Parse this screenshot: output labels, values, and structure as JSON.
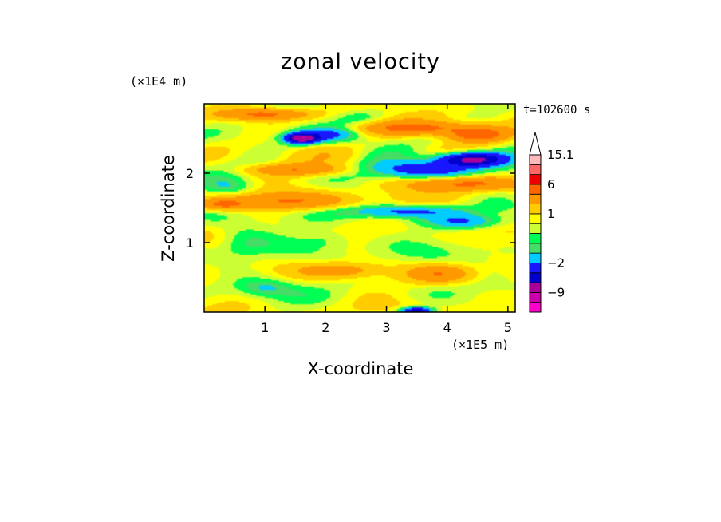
{
  "chart_data": {
    "type": "heatmap",
    "title": "zonal velocity",
    "xlabel": "X-coordinate",
    "ylabel": "Z-coordinate",
    "x_scale_label": "(×1E5 m)",
    "y_scale_label": "(×1E4 m)",
    "time_label": "t=102600 s",
    "xlim": [
      0,
      5.12
    ],
    "ylim": [
      0,
      3.0
    ],
    "x_ticks": [
      1,
      2,
      3,
      4,
      5
    ],
    "x_tick_labels": [
      "1",
      "2",
      "3",
      "4",
      "5"
    ],
    "y_ticks": [
      1,
      2
    ],
    "y_tick_labels": [
      "1",
      "2"
    ],
    "colorbar": {
      "levels": [
        -15,
        -12,
        -9,
        -6,
        -4,
        -2,
        -1,
        -0.5,
        0,
        0.5,
        1,
        2,
        4,
        6,
        8,
        11,
        15.1
      ],
      "colors": [
        "#ff00cc",
        "#cc00aa",
        "#aa0099",
        "#0000cc",
        "#1818ff",
        "#00ccff",
        "#44dd66",
        "#00ff55",
        "#ccff33",
        "#ffff00",
        "#ffcc00",
        "#ff9900",
        "#ff6600",
        "#ee0000",
        "#ff6666",
        "#ffbbbb"
      ],
      "extend_color": "#ffffff",
      "tick_values": [
        -9,
        -2,
        1,
        6,
        15.1
      ],
      "tick_labels": [
        "−9",
        "−2",
        "1",
        "6",
        "15.1"
      ]
    },
    "features": [
      {
        "x": 1.0,
        "z": 2.85,
        "sx": 0.7,
        "sz": 0.08,
        "v": 4
      },
      {
        "x": 2.6,
        "z": 2.8,
        "sx": 0.5,
        "sz": 0.12,
        "v": -1.2
      },
      {
        "x": 3.6,
        "z": 2.65,
        "sx": 1.0,
        "sz": 0.1,
        "v": 4
      },
      {
        "x": 4.5,
        "z": 2.55,
        "sx": 0.5,
        "sz": 0.1,
        "v": 5
      },
      {
        "x": 1.6,
        "z": 2.5,
        "sx": 0.25,
        "sz": 0.07,
        "v": -8
      },
      {
        "x": 2.0,
        "z": 2.55,
        "sx": 0.5,
        "sz": 0.1,
        "v": -2.5
      },
      {
        "x": 4.4,
        "z": 2.2,
        "sx": 0.55,
        "sz": 0.1,
        "v": -8
      },
      {
        "x": 3.7,
        "z": 2.05,
        "sx": 0.9,
        "sz": 0.12,
        "v": -3
      },
      {
        "x": 4.3,
        "z": 1.85,
        "sx": 0.9,
        "sz": 0.1,
        "v": 4
      },
      {
        "x": 1.5,
        "z": 2.05,
        "sx": 0.8,
        "sz": 0.08,
        "v": 3
      },
      {
        "x": 0.4,
        "z": 1.8,
        "sx": 0.4,
        "sz": 0.12,
        "v": -1.5
      },
      {
        "x": 1.4,
        "z": 1.6,
        "sx": 1.0,
        "sz": 0.12,
        "v": 3.5
      },
      {
        "x": 0.3,
        "z": 1.55,
        "sx": 0.4,
        "sz": 0.08,
        "v": 3.5
      },
      {
        "x": 3.3,
        "z": 1.45,
        "sx": 0.9,
        "sz": 0.09,
        "v": -3
      },
      {
        "x": 4.3,
        "z": 1.3,
        "sx": 0.6,
        "sz": 0.1,
        "v": -2.5
      },
      {
        "x": 2.0,
        "z": 1.05,
        "sx": 0.5,
        "sz": 0.15,
        "v": -1.2
      },
      {
        "x": 0.6,
        "z": 1.0,
        "sx": 0.5,
        "sz": 0.25,
        "v": -1.2
      },
      {
        "x": 2.2,
        "z": 0.6,
        "sx": 0.6,
        "sz": 0.1,
        "v": 2.5
      },
      {
        "x": 3.9,
        "z": 0.55,
        "sx": 0.5,
        "sz": 0.12,
        "v": 3
      },
      {
        "x": 1.0,
        "z": 0.35,
        "sx": 0.4,
        "sz": 0.12,
        "v": -1.2
      },
      {
        "x": 3.5,
        "z": 0.02,
        "sx": 0.25,
        "sz": 0.05,
        "v": -6
      }
    ]
  }
}
